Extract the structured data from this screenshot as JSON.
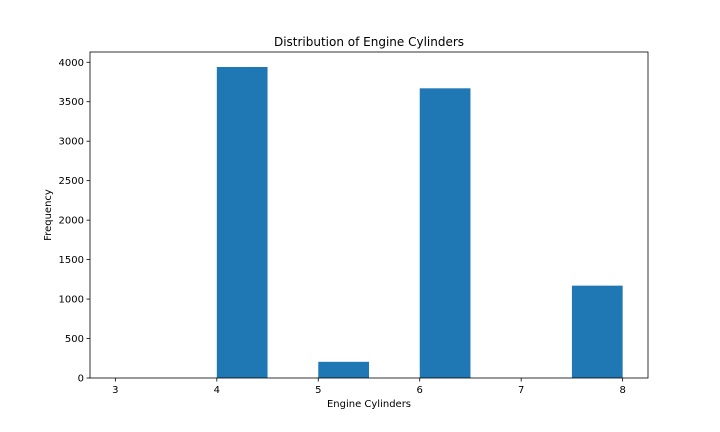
{
  "chart_data": {
    "type": "bar",
    "title": "Distribution of Engine Cylinders",
    "xlabel": "Engine Cylinders",
    "ylabel": "Frequency",
    "xlim": [
      2.75,
      8.25
    ],
    "ylim": [
      0,
      4130
    ],
    "xticks": [
      3,
      4,
      5,
      6,
      7,
      8
    ],
    "yticks": [
      0,
      500,
      1000,
      1500,
      2000,
      2500,
      3000,
      3500,
      4000
    ],
    "grid": false,
    "bar_color": "#1f77b4",
    "bins": [
      {
        "start": 4.0,
        "end": 4.5,
        "value": 3940
      },
      {
        "start": 5.0,
        "end": 5.5,
        "value": 205
      },
      {
        "start": 6.0,
        "end": 6.5,
        "value": 3670
      },
      {
        "start": 7.5,
        "end": 8.0,
        "value": 1170
      }
    ]
  }
}
